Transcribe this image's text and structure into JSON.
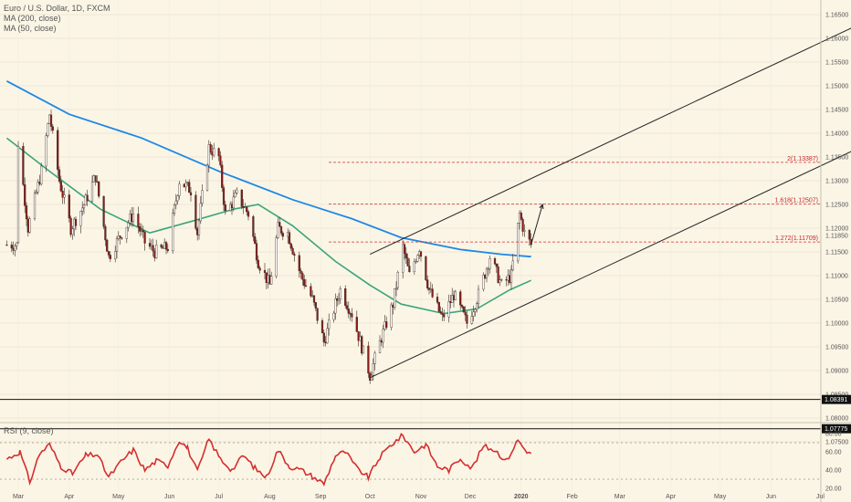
{
  "header": {
    "symbol": "Euro / U.S. Dollar, 1D, FXCM",
    "ma200_label": "MA (200, close)",
    "ma50_label": "MA (50, close)",
    "rsi_label": "RSI (9, close)"
  },
  "colors": {
    "background": "#fbf5e6",
    "up": "#ffffff",
    "down": "#8b1a1a",
    "ma200": "#1e88e5",
    "ma50": "#3aa57a",
    "rsi": "#d32f2f",
    "fib": "#d32f2f",
    "channel": "#222222"
  },
  "chart_data": [
    {
      "type": "candlestick",
      "title": "Euro / U.S. Dollar, 1D, FXCM",
      "x_labels": [
        "Mar",
        "Apr",
        "May",
        "Jun",
        "Jul",
        "Aug",
        "Sep",
        "Oct",
        "Nov",
        "Dec",
        "2020",
        "Feb",
        "Mar",
        "Apr",
        "May",
        "Jun",
        "Jul"
      ],
      "y_ticks": [
        "1.16500",
        "1.16000",
        "1.15500",
        "1.15000",
        "1.14500",
        "1.14000",
        "1.13500",
        "1.13000",
        "1.12500",
        "1.12000",
        "1.11500",
        "1.11000",
        "1.10500",
        "1.10000",
        "1.09500",
        "1.09000",
        "1.08500",
        "1.08000",
        "1.07500"
      ],
      "ylim": [
        1.0725,
        1.1675
      ],
      "last_price": "1.11850",
      "price_tags": [
        "1.08391",
        "1.07775"
      ],
      "fib_levels": [
        {
          "label": "2(1.13387)",
          "value": 1.13387
        },
        {
          "label": "1.618(1.12507)",
          "value": 1.12507
        },
        {
          "label": "1.272(1.11709)",
          "value": 1.11709
        }
      ],
      "ohlc_path": [
        [
          "2019-03-01",
          1.138
        ],
        [
          "2019-03-07",
          1.12
        ],
        [
          "2019-03-15",
          1.132
        ],
        [
          "2019-03-20",
          1.144
        ],
        [
          "2019-03-26",
          1.13
        ],
        [
          "2019-04-02",
          1.12
        ],
        [
          "2019-04-10",
          1.125
        ],
        [
          "2019-04-17",
          1.131
        ],
        [
          "2019-04-25",
          1.114
        ],
        [
          "2019-05-03",
          1.119
        ],
        [
          "2019-05-10",
          1.123
        ],
        [
          "2019-05-17",
          1.117
        ],
        [
          "2019-05-23",
          1.115
        ],
        [
          "2019-05-31",
          1.116
        ],
        [
          "2019-06-07",
          1.13
        ],
        [
          "2019-06-14",
          1.128
        ],
        [
          "2019-06-18",
          1.119
        ],
        [
          "2019-06-25",
          1.137
        ],
        [
          "2019-07-01",
          1.135
        ],
        [
          "2019-07-05",
          1.123
        ],
        [
          "2019-07-12",
          1.127
        ],
        [
          "2019-07-19",
          1.123
        ],
        [
          "2019-07-25",
          1.113
        ],
        [
          "2019-08-01",
          1.108
        ],
        [
          "2019-08-06",
          1.12
        ],
        [
          "2019-08-12",
          1.119
        ],
        [
          "2019-08-20",
          1.11
        ],
        [
          "2019-08-27",
          1.105
        ],
        [
          "2019-09-03",
          1.096
        ],
        [
          "2019-09-10",
          1.104
        ],
        [
          "2019-09-13",
          1.107
        ],
        [
          "2019-09-20",
          1.102
        ],
        [
          "2019-09-26",
          1.095
        ],
        [
          "2019-10-01",
          1.089
        ],
        [
          "2019-10-08",
          1.097
        ],
        [
          "2019-10-15",
          1.104
        ],
        [
          "2019-10-21",
          1.116
        ],
        [
          "2019-10-25",
          1.11
        ],
        [
          "2019-10-31",
          1.116
        ],
        [
          "2019-11-06",
          1.107
        ],
        [
          "2019-11-14",
          1.101
        ],
        [
          "2019-11-21",
          1.106
        ],
        [
          "2019-11-29",
          1.1
        ],
        [
          "2019-12-06",
          1.106
        ],
        [
          "2019-12-13",
          1.114
        ],
        [
          "2019-12-20",
          1.108
        ],
        [
          "2019-12-26",
          1.11
        ],
        [
          "2019-12-31",
          1.123
        ],
        [
          "2020-01-03",
          1.119
        ],
        [
          "2020-01-07",
          1.1165
        ]
      ],
      "ma200": [
        [
          "2019-02-22",
          1.151
        ],
        [
          "2019-04-01",
          1.144
        ],
        [
          "2019-05-15",
          1.139
        ],
        [
          "2019-07-01",
          1.132
        ],
        [
          "2019-08-15",
          1.126
        ],
        [
          "2019-09-20",
          1.122
        ],
        [
          "2019-10-20",
          1.118
        ],
        [
          "2019-11-25",
          1.1155
        ],
        [
          "2019-12-20",
          1.1145
        ],
        [
          "2020-01-07",
          1.114
        ]
      ],
      "ma50": [
        [
          "2019-02-22",
          1.139
        ],
        [
          "2019-03-20",
          1.132
        ],
        [
          "2019-04-20",
          1.124
        ],
        [
          "2019-05-20",
          1.119
        ],
        [
          "2019-06-15",
          1.1215
        ],
        [
          "2019-07-10",
          1.124
        ],
        [
          "2019-07-25",
          1.125
        ],
        [
          "2019-08-15",
          1.1205
        ],
        [
          "2019-09-10",
          1.113
        ],
        [
          "2019-10-01",
          1.108
        ],
        [
          "2019-10-20",
          1.104
        ],
        [
          "2019-11-15",
          1.102
        ],
        [
          "2019-12-05",
          1.103
        ],
        [
          "2019-12-25",
          1.107
        ],
        [
          "2020-01-07",
          1.109
        ]
      ],
      "channel_upper": [
        [
          "2019-10-01",
          1.1145
        ],
        [
          "2020-07-25",
          1.163
        ]
      ],
      "channel_lower": [
        [
          "2019-10-01",
          1.0885
        ],
        [
          "2020-07-25",
          1.137
        ]
      ],
      "projection_arrow": [
        [
          "2020-01-07",
          1.1165
        ],
        [
          "2020-01-14",
          1.125
        ]
      ]
    },
    {
      "type": "line",
      "title": "RSI (9, close)",
      "y_ticks": [
        "80.00",
        "60.00",
        "40.00",
        "20.00"
      ],
      "ylim": [
        15,
        85
      ],
      "levels": [
        70,
        30
      ],
      "rsi": [
        [
          "2019-02-22",
          52
        ],
        [
          "2019-03-02",
          60
        ],
        [
          "2019-03-08",
          27
        ],
        [
          "2019-03-14",
          58
        ],
        [
          "2019-03-20",
          68
        ],
        [
          "2019-03-27",
          44
        ],
        [
          "2019-04-03",
          36
        ],
        [
          "2019-04-11",
          56
        ],
        [
          "2019-04-18",
          57
        ],
        [
          "2019-04-25",
          32
        ],
        [
          "2019-05-03",
          50
        ],
        [
          "2019-05-10",
          62
        ],
        [
          "2019-05-17",
          40
        ],
        [
          "2019-05-24",
          50
        ],
        [
          "2019-05-31",
          45
        ],
        [
          "2019-06-07",
          73
        ],
        [
          "2019-06-12",
          64
        ],
        [
          "2019-06-18",
          38
        ],
        [
          "2019-06-25",
          74
        ],
        [
          "2019-07-02",
          52
        ],
        [
          "2019-07-09",
          40
        ],
        [
          "2019-07-16",
          56
        ],
        [
          "2019-07-23",
          42
        ],
        [
          "2019-07-30",
          32
        ],
        [
          "2019-08-06",
          62
        ],
        [
          "2019-08-13",
          44
        ],
        [
          "2019-08-20",
          40
        ],
        [
          "2019-08-27",
          33
        ],
        [
          "2019-09-03",
          25
        ],
        [
          "2019-09-10",
          56
        ],
        [
          "2019-09-16",
          60
        ],
        [
          "2019-09-23",
          42
        ],
        [
          "2019-09-30",
          32
        ],
        [
          "2019-10-07",
          54
        ],
        [
          "2019-10-14",
          68
        ],
        [
          "2019-10-21",
          78
        ],
        [
          "2019-10-28",
          60
        ],
        [
          "2019-11-04",
          68
        ],
        [
          "2019-11-11",
          44
        ],
        [
          "2019-11-18",
          40
        ],
        [
          "2019-11-25",
          53
        ],
        [
          "2019-12-02",
          42
        ],
        [
          "2019-12-09",
          66
        ],
        [
          "2019-12-16",
          62
        ],
        [
          "2019-12-23",
          50
        ],
        [
          "2019-12-30",
          73
        ],
        [
          "2020-01-03",
          63
        ],
        [
          "2020-01-07",
          58
        ]
      ]
    }
  ]
}
